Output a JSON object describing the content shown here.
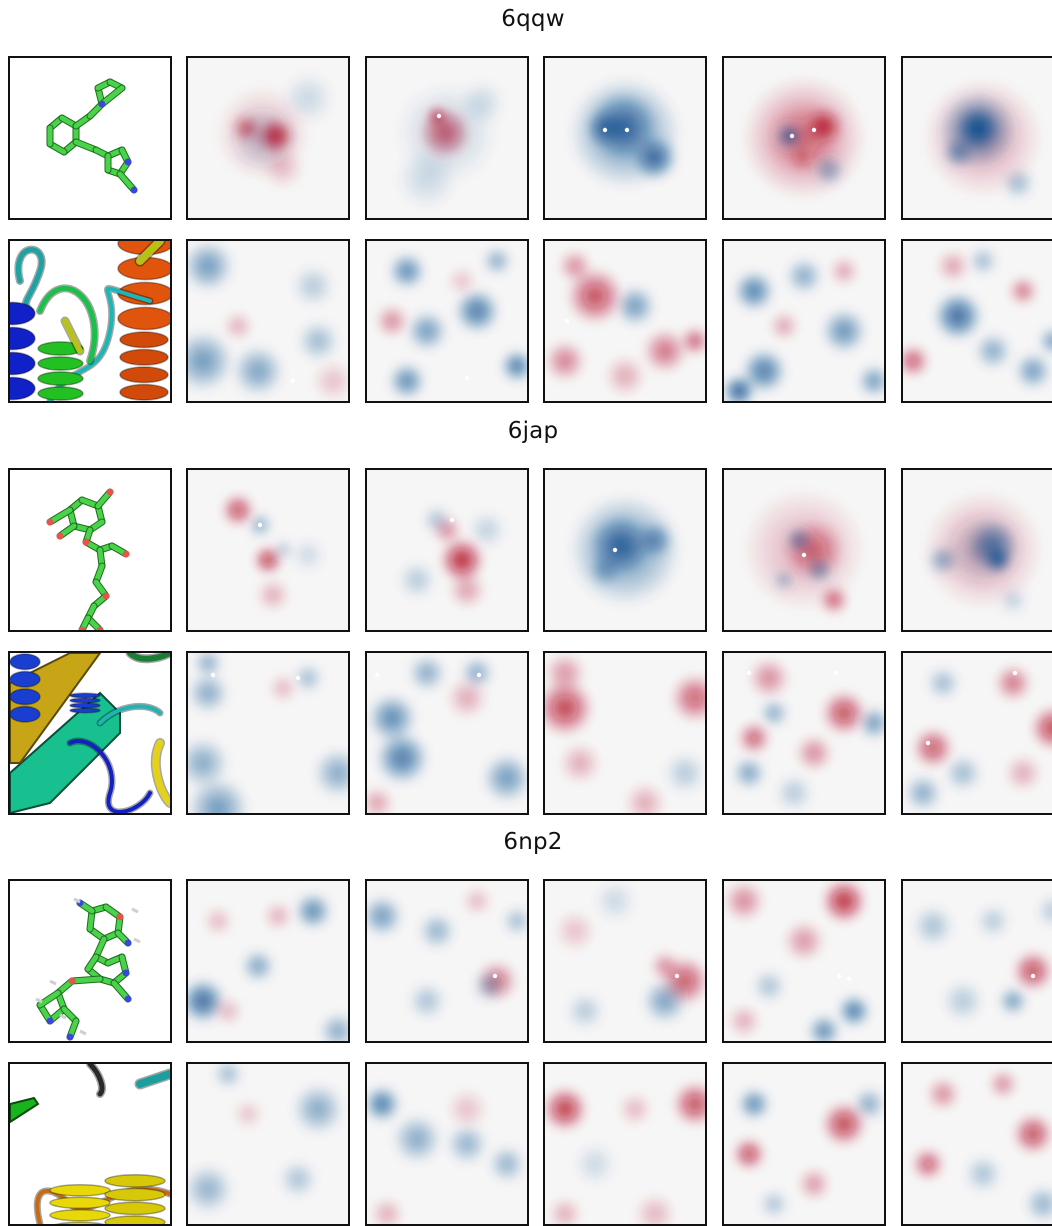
{
  "groups": [
    {
      "title": "6qqw",
      "rows": [
        "ligand",
        "protein"
      ]
    },
    {
      "title": "6jap",
      "rows": [
        "ligand",
        "protein"
      ]
    },
    {
      "title": "6np2",
      "rows": [
        "ligand",
        "protein"
      ]
    }
  ],
  "colors": {
    "red": "#b30d26",
    "blue": "#0b4d8e",
    "neutral": "#f6f6f6",
    "carbon": "#4ad34a",
    "oxygen": "#e8534d",
    "nitrogen": "#3b46e0"
  },
  "cell_kinds": {
    "molecule": "ligand-structure-render",
    "cartoon": "protein-cartoon-render",
    "heatmap": "diverging-heatmap"
  }
}
